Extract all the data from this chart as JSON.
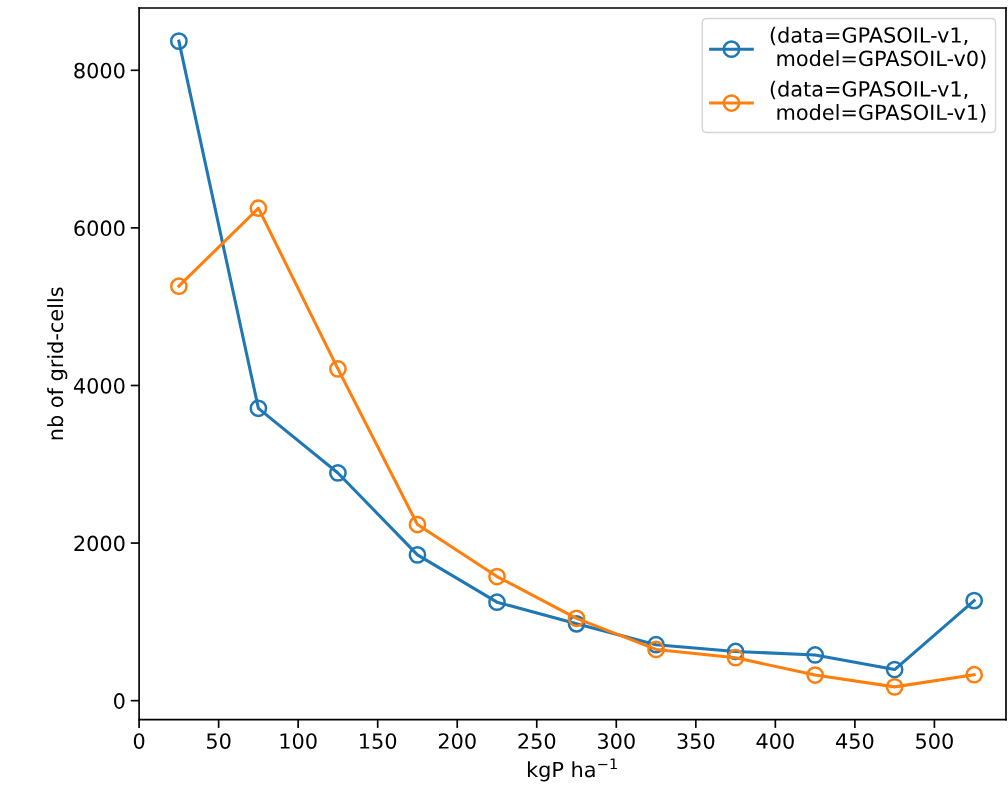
{
  "chart_data": {
    "type": "line",
    "xlabel": "kgP ha$^{−1}$",
    "ylabel": "nb of grid-cells",
    "x": [
      25,
      75,
      125,
      175,
      225,
      275,
      325,
      375,
      425,
      475,
      525
    ],
    "series": [
      {
        "name": "(data=GPASOIL-v1,\n model=GPASOIL-v0)",
        "color": "#1f77b4",
        "values": [
          8370,
          3710,
          2890,
          1850,
          1250,
          975,
          710,
          625,
          580,
          395,
          1270
        ]
      },
      {
        "name": "(data=GPASOIL-v1,\n model=GPASOIL-v1)",
        "color": "#ff7f0e",
        "values": [
          5260,
          6250,
          4210,
          2235,
          1575,
          1045,
          650,
          545,
          325,
          175,
          330
        ]
      }
    ],
    "xlim": [
      0,
      545
    ],
    "ylim": [
      -240,
      8790
    ],
    "xticks": [
      0,
      50,
      100,
      150,
      200,
      250,
      300,
      350,
      400,
      450,
      500
    ],
    "yticks": [
      0,
      2000,
      4000,
      6000,
      8000
    ],
    "marker": "circle",
    "line_style": "solid",
    "legend": "top right",
    "grid": false
  }
}
